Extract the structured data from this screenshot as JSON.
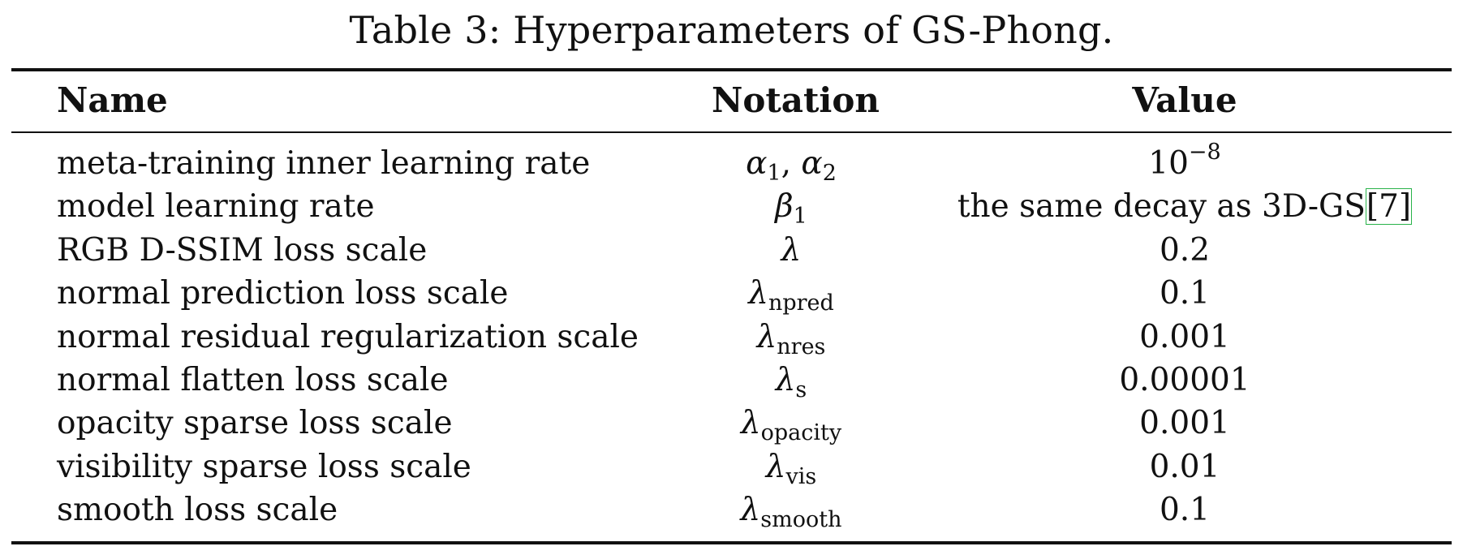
{
  "caption": "Table 3: Hyperparameters of GS-Phong.",
  "headers": {
    "name": "Name",
    "notation": "Notation",
    "value": "Value"
  },
  "rows": [
    {
      "name": "meta-training inner learning rate",
      "notation": "α₁, α₂",
      "value": "10⁻⁸"
    },
    {
      "name": "model learning rate",
      "notation": "β₁",
      "value": "the same decay as 3D-GS[7]"
    },
    {
      "name": "RGB D-SSIM loss scale",
      "notation": "λ",
      "value": "0.2"
    },
    {
      "name": "normal prediction loss scale",
      "notation": "λnpred",
      "value": "0.1"
    },
    {
      "name": "normal residual regularization scale",
      "notation": "λnres",
      "value": "0.001"
    },
    {
      "name": "normal flatten loss scale",
      "notation": "λs",
      "value": "0.00001"
    },
    {
      "name": "opacity sparse loss scale",
      "notation": "λopacity",
      "value": "0.001"
    },
    {
      "name": "visibility sparse loss scale",
      "notation": "λvis",
      "value": "0.01"
    },
    {
      "name": "smooth loss scale",
      "notation": "λsmooth",
      "value": "0.1"
    }
  ],
  "notation_parts": {
    "alpha_sym": "α",
    "alpha_sub1": "1",
    "comma": ", ",
    "alpha_sub2": "2",
    "beta_sym": "β",
    "beta_sub": "1",
    "lambda_sym": "λ",
    "npred": "npred",
    "nres": "nres",
    "s": "s",
    "opacity": "opacity",
    "vis": "vis",
    "smooth": "smooth"
  },
  "value_parts": {
    "exp_base": "10",
    "exp_power": "−8",
    "decay_text": "the same decay as 3D-GS",
    "cite_label": "[7]"
  },
  "colors": {
    "text": "#111111",
    "citation_box": "#29b34a"
  }
}
